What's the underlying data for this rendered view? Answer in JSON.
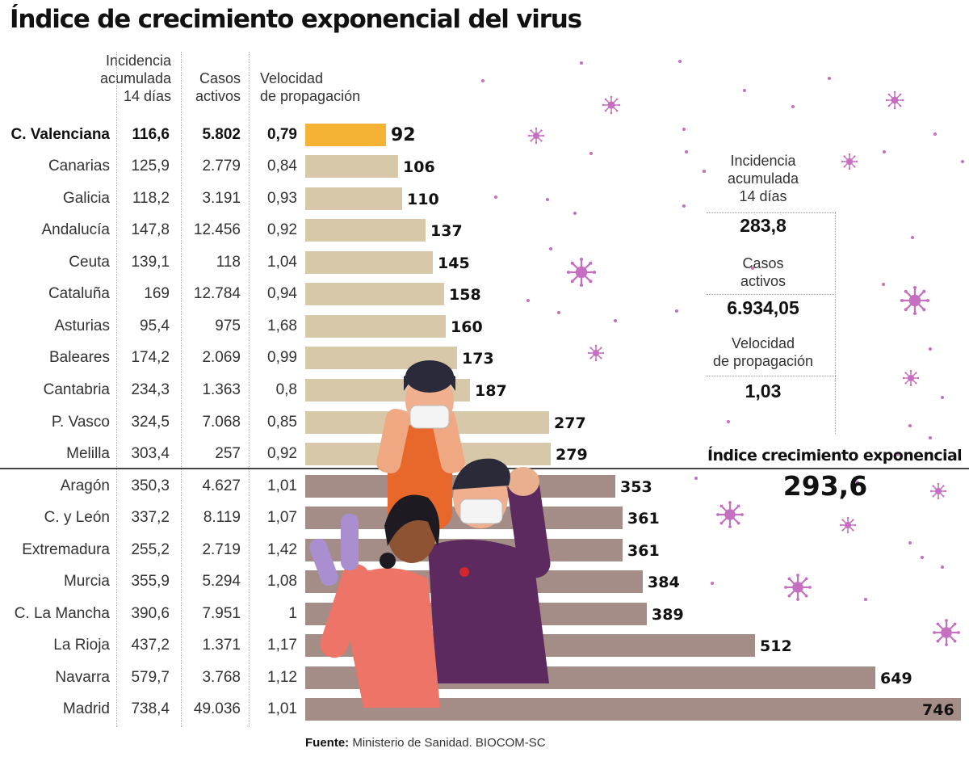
{
  "title": "Índice de crecimiento exponencial del virus",
  "headers": {
    "incidence": [
      "Incidencia",
      "acumulada",
      "14 días"
    ],
    "active": [
      "Casos",
      "activos"
    ],
    "velocity": [
      "Velocidad",
      "de propagación"
    ]
  },
  "colors": {
    "highlight": "#f5b335",
    "low_group": "#d8c8aa",
    "high_group": "#a38d86",
    "virus": "#c46fbf"
  },
  "summary": {
    "incidence_label": [
      "Incidencia",
      "acumulada",
      "14 días"
    ],
    "incidence_value": "283,8",
    "active_label": [
      "Casos",
      "activos"
    ],
    "active_value": "6.934,05",
    "velocity_label": [
      "Velocidad",
      "de propagación"
    ],
    "velocity_value": "1,03",
    "growth_label": "Índice crecimiento exponencial",
    "growth_value": "293,6"
  },
  "source": {
    "label": "Fuente:",
    "text": " Ministerio de Sanidad. BIOCOM-SC"
  },
  "chart_data": {
    "type": "bar",
    "orientation": "horizontal",
    "title": "Índice de crecimiento exponencial del virus",
    "xlim": [
      0,
      746
    ],
    "series_name": "Índice crecimiento exponencial",
    "highlight_category": "C. Valenciana",
    "rows": [
      {
        "region": "C. Valenciana",
        "incidence": "116,6",
        "active": "5.802",
        "velocity": "0,79",
        "value": 92,
        "group": "highlight"
      },
      {
        "region": "Canarias",
        "incidence": "125,9",
        "active": "2.779",
        "velocity": "0,84",
        "value": 106,
        "group": "low"
      },
      {
        "region": "Galicia",
        "incidence": "118,2",
        "active": "3.191",
        "velocity": "0,93",
        "value": 110,
        "group": "low"
      },
      {
        "region": "Andalucía",
        "incidence": "147,8",
        "active": "12.456",
        "velocity": "0,92",
        "value": 137,
        "group": "low"
      },
      {
        "region": "Ceuta",
        "incidence": "139,1",
        "active": "118",
        "velocity": "1,04",
        "value": 145,
        "group": "low"
      },
      {
        "region": "Cataluña",
        "incidence": "169",
        "active": "12.784",
        "velocity": "0,94",
        "value": 158,
        "group": "low"
      },
      {
        "region": "Asturias",
        "incidence": "95,4",
        "active": "975",
        "velocity": "1,68",
        "value": 160,
        "group": "low"
      },
      {
        "region": "Baleares",
        "incidence": "174,2",
        "active": "2.069",
        "velocity": "0,99",
        "value": 173,
        "group": "low"
      },
      {
        "region": "Cantabria",
        "incidence": "234,3",
        "active": "1.363",
        "velocity": "0,8",
        "value": 187,
        "group": "low"
      },
      {
        "region": "P. Vasco",
        "incidence": "324,5",
        "active": "7.068",
        "velocity": "0,85",
        "value": 277,
        "group": "low"
      },
      {
        "region": "Melilla",
        "incidence": "303,4",
        "active": "257",
        "velocity": "0,92",
        "value": 279,
        "group": "low"
      },
      {
        "region": "Aragón",
        "incidence": "350,3",
        "active": "4.627",
        "velocity": "1,01",
        "value": 353,
        "group": "high"
      },
      {
        "region": "C. y León",
        "incidence": "337,2",
        "active": "8.119",
        "velocity": "1,07",
        "value": 361,
        "group": "high"
      },
      {
        "region": "Extremadura",
        "incidence": "255,2",
        "active": "2.719",
        "velocity": "1,42",
        "value": 361,
        "group": "high"
      },
      {
        "region": "Murcia",
        "incidence": "355,9",
        "active": "5.294",
        "velocity": "1,08",
        "value": 384,
        "group": "high"
      },
      {
        "region": "C. La Mancha",
        "incidence": "390,6",
        "active": "7.951",
        "velocity": "1",
        "value": 389,
        "group": "high"
      },
      {
        "region": "La Rioja",
        "incidence": "437,2",
        "active": "1.371",
        "velocity": "1,17",
        "value": 512,
        "group": "high"
      },
      {
        "region": "Navarra",
        "incidence": "579,7",
        "active": "3.768",
        "velocity": "1,12",
        "value": 649,
        "group": "high"
      },
      {
        "region": "Madrid",
        "incidence": "738,4",
        "active": "49.036",
        "velocity": "1,01",
        "value": 746,
        "group": "high"
      }
    ]
  }
}
